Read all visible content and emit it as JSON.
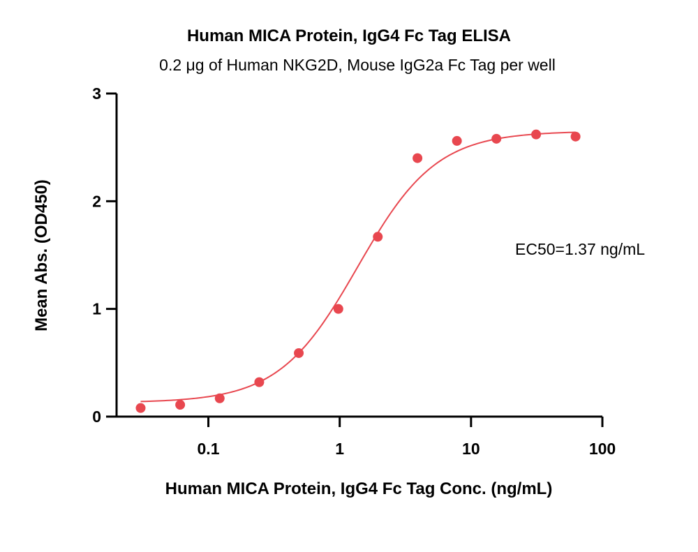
{
  "chart_data": {
    "type": "scatter",
    "title": "Human MICA Protein, IgG4 Fc Tag ELISA",
    "subtitle": "0.2 μg of Human NKG2D, Mouse IgG2a Fc Tag per well",
    "xlabel": "Human MICA Protein, IgG4 Fc Tag Conc. (ng/mL)",
    "ylabel": "Mean Abs. (OD450)",
    "x_scale": "log",
    "xlim": [
      0.02,
      100
    ],
    "ylim": [
      0,
      3
    ],
    "x_ticks": [
      0.1,
      1,
      10,
      100
    ],
    "x_tick_labels": [
      "0.1",
      "1",
      "10",
      "100"
    ],
    "y_ticks": [
      0,
      1,
      2,
      3
    ],
    "y_tick_labels": [
      "0",
      "1",
      "2",
      "3"
    ],
    "grid": false,
    "series": [
      {
        "color": "#e8474f",
        "x": [
          0.0305,
          0.061,
          0.122,
          0.244,
          0.488,
          0.977,
          1.95,
          3.91,
          7.81,
          15.6,
          31.3,
          62.5
        ],
        "y": [
          0.08,
          0.11,
          0.17,
          0.32,
          0.59,
          1.0,
          1.67,
          2.4,
          2.56,
          2.58,
          2.62,
          2.6
        ]
      }
    ],
    "fit_curve": {
      "model": "4PL",
      "bottom": 0.13,
      "top": 2.65,
      "ec50": 1.37,
      "hill": 1.45,
      "color": "#e8474f"
    },
    "annotations": [
      "EC50=1.37 ng/mL"
    ]
  }
}
